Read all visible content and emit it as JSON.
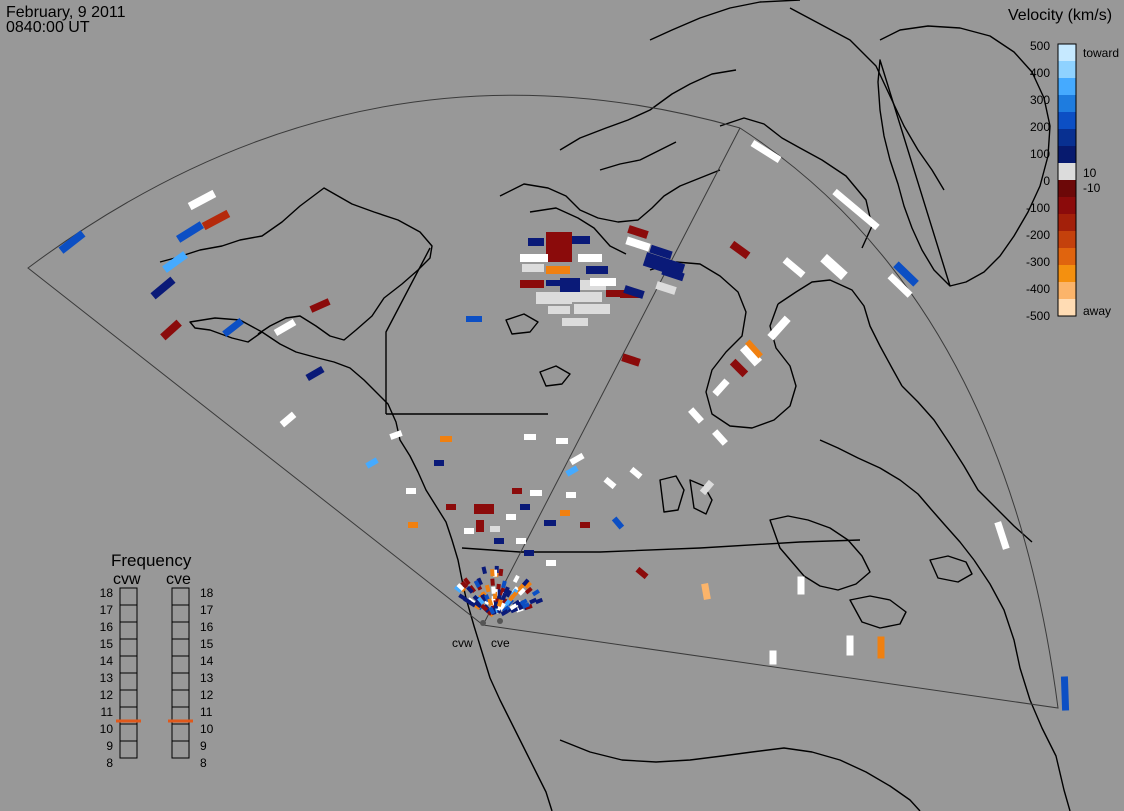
{
  "header": {
    "date": "February, 9 2011",
    "time": "0840:00 UT"
  },
  "colorbar": {
    "title": "Velocity (km/s)",
    "ticks": [
      "500",
      "400",
      "300",
      "200",
      "100",
      "0",
      "-100",
      "-200",
      "-300",
      "-400",
      "-500"
    ],
    "inner_labels": [
      "10",
      "-10"
    ],
    "toward_label": "toward",
    "away_label": "away",
    "colors": [
      "#c6e9ff",
      "#8fd2ff",
      "#45aaff",
      "#1e7cdf",
      "#0c4fc4",
      "#083091",
      "#071a6e",
      "#dcdcdc",
      "#6c0808",
      "#8b0b0b",
      "#a3200a",
      "#c4410c",
      "#e0640e",
      "#f4900f",
      "#fbb46a",
      "#ffdcb4"
    ]
  },
  "frequency": {
    "title": "Frequency",
    "radar_left": "cvw",
    "radar_right": "cve",
    "levels": [
      "18",
      "17",
      "16",
      "15",
      "14",
      "13",
      "12",
      "11",
      "10",
      "9",
      "8"
    ],
    "cvw_value": 11,
    "cve_value": 11
  },
  "radar_labels": {
    "left": "cvw",
    "right": "cve"
  },
  "legend_colors": {
    "background": "#989898",
    "freq_marker": "#e0581a",
    "low_velocity": "#dcdcdc",
    "white": "#ffffff"
  }
}
